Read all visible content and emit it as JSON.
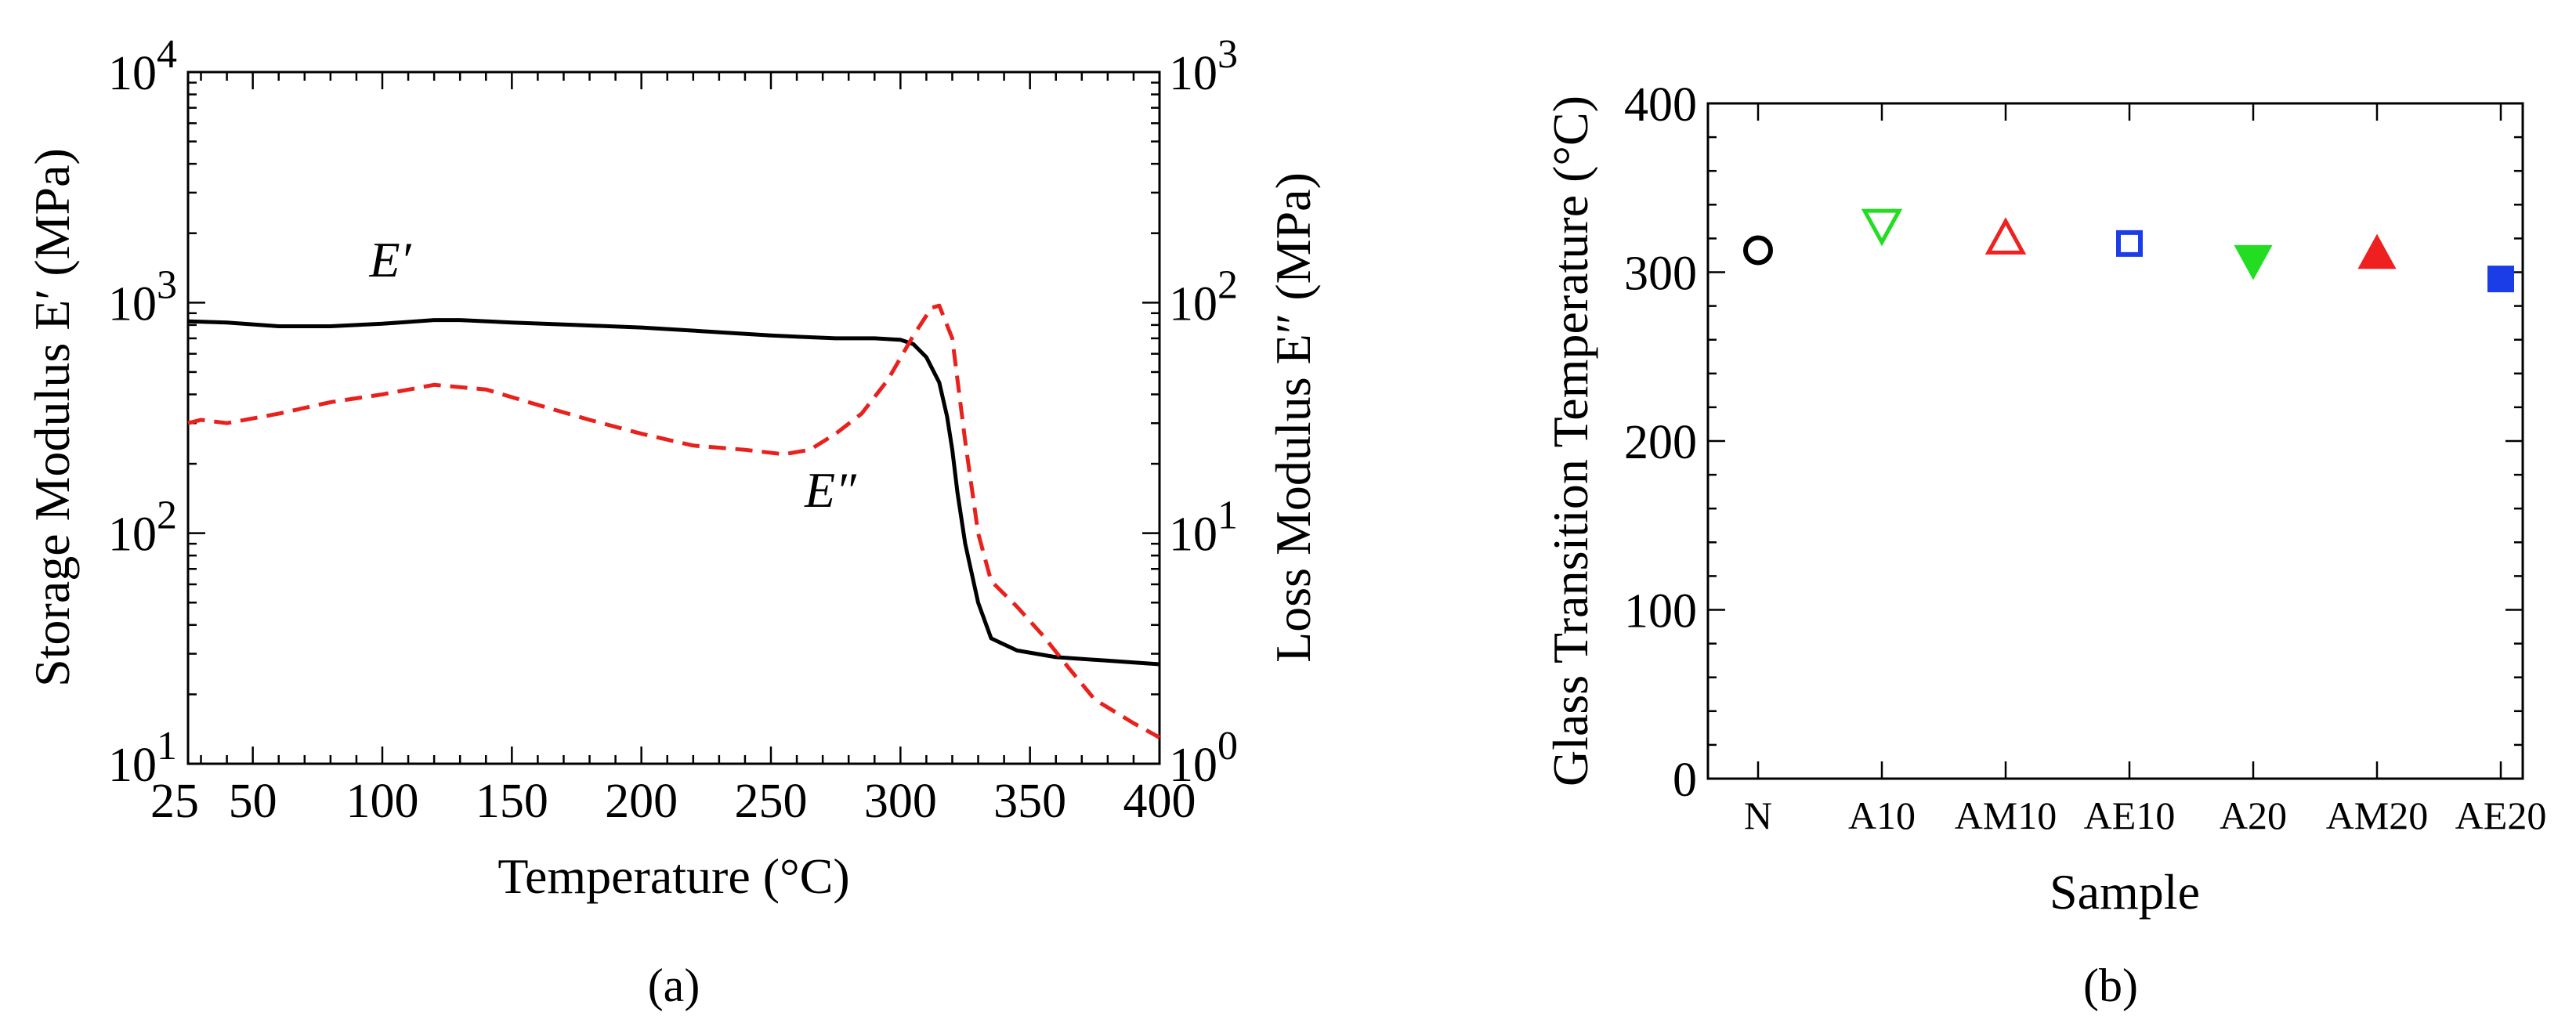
{
  "chart_data": [
    {
      "panel": "a",
      "type": "line",
      "title": "",
      "panel_label": "(a)",
      "xlabel": "Temperature (°C)",
      "ylabel_left": "Storage Modulus E′ (MPa)",
      "ylabel_right": "Loss Modulus  E″ (MPa)",
      "xlim": [
        25,
        400
      ],
      "xticks": [
        "25",
        "50",
        "100",
        "150",
        "200",
        "250",
        "300",
        "350",
        "400"
      ],
      "xtick_values": [
        25,
        50,
        100,
        150,
        200,
        250,
        300,
        350,
        400
      ],
      "yscale": "log",
      "ylim_left": [
        10,
        10000
      ],
      "ylim_right": [
        1,
        1000
      ],
      "yticks_left": [
        {
          "base": "10",
          "exp": "1",
          "value": 10
        },
        {
          "base": "10",
          "exp": "2",
          "value": 100
        },
        {
          "base": "10",
          "exp": "3",
          "value": 1000
        },
        {
          "base": "10",
          "exp": "4",
          "value": 10000
        }
      ],
      "yticks_right": [
        {
          "base": "10",
          "exp": "0",
          "value": 1
        },
        {
          "base": "10",
          "exp": "1",
          "value": 10
        },
        {
          "base": "10",
          "exp": "2",
          "value": 100
        },
        {
          "base": "10",
          "exp": "3",
          "value": 1000
        }
      ],
      "series": [
        {
          "name": "E′",
          "axis": "left",
          "color": "#000000",
          "style": "solid",
          "x": [
            25,
            40,
            60,
            80,
            100,
            120,
            130,
            150,
            175,
            200,
            225,
            250,
            275,
            290,
            300,
            305,
            310,
            315,
            318,
            320,
            322,
            325,
            330,
            335,
            345,
            360,
            380,
            400
          ],
          "y": [
            830,
            820,
            790,
            790,
            810,
            840,
            840,
            820,
            800,
            780,
            750,
            720,
            700,
            700,
            690,
            660,
            580,
            450,
            320,
            230,
            150,
            90,
            50,
            35,
            31,
            29,
            28,
            27
          ]
        },
        {
          "name": "E″",
          "axis": "right",
          "color": "#e8211d",
          "style": "dashed",
          "x": [
            25,
            30,
            40,
            60,
            80,
            100,
            120,
            140,
            160,
            180,
            200,
            220,
            240,
            255,
            265,
            275,
            285,
            295,
            305,
            312,
            315,
            320,
            325,
            330,
            335,
            345,
            355,
            365,
            375,
            390,
            400
          ],
          "y": [
            30,
            31,
            30,
            33,
            37,
            40,
            44,
            42,
            36,
            31,
            27,
            24,
            23,
            22,
            23,
            27,
            33,
            46,
            72,
            95,
            97,
            70,
            25,
            10,
            6.2,
            4.8,
            3.6,
            2.6,
            1.9,
            1.5,
            1.3
          ]
        }
      ],
      "annotations": [
        {
          "text": "E′",
          "x": 95,
          "y": 1300
        },
        {
          "text": "E″",
          "x": 263,
          "y": 130
        }
      ]
    },
    {
      "panel": "b",
      "type": "scatter",
      "title": "",
      "panel_label": "(b)",
      "xlabel": "Sample",
      "ylabel": "Glass Transition Temperature (°C)",
      "ylim": [
        0,
        400
      ],
      "yticks": [
        "0",
        "100",
        "200",
        "300",
        "400"
      ],
      "ytick_values": [
        0,
        100,
        200,
        300,
        400
      ],
      "categories": [
        "N",
        "A10",
        "AM10",
        "AE10",
        "A20",
        "AM20",
        "AE20"
      ],
      "values": [
        313,
        328,
        320,
        317,
        307,
        311,
        296
      ],
      "markers": [
        "open-circle",
        "open-triangle-down",
        "open-triangle-up",
        "open-square",
        "filled-triangle-down",
        "filled-triangle-up",
        "filled-square"
      ],
      "colors": [
        "#000000",
        "#22dd22",
        "#ee2020",
        "#1a3de8",
        "#22dd22",
        "#ee2020",
        "#1a3de8"
      ]
    }
  ]
}
